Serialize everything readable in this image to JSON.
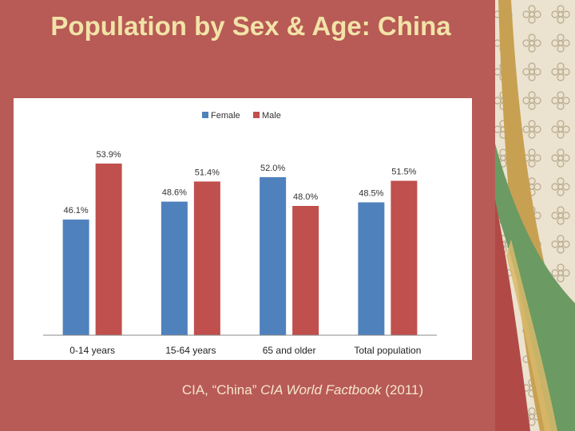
{
  "slide": {
    "title": "Population by Sex & Age: China",
    "source_prefix": "CIA, “China” ",
    "source_italic": "CIA World Factbook",
    "source_suffix": " (2011)"
  },
  "colors": {
    "background": "#b85a55",
    "female": "#4f81bd",
    "male": "#c0504d",
    "title": "#f2e3a8"
  },
  "chart_data": {
    "type": "bar",
    "categories": [
      "0-14 years",
      "15-64 years",
      "65 and older",
      "Total population"
    ],
    "series": [
      {
        "name": "Female",
        "values": [
          46.1,
          48.6,
          52.0,
          48.5
        ],
        "labels": [
          "46.1%",
          "48.6%",
          "52.0%",
          "48.5%"
        ]
      },
      {
        "name": "Male",
        "values": [
          53.9,
          51.4,
          48.0,
          51.5
        ],
        "labels": [
          "53.9%",
          "51.4%",
          "48.0%",
          "51.5%"
        ]
      }
    ],
    "ylim": [
      30,
      55
    ],
    "grid": false,
    "legend": "top-center"
  }
}
